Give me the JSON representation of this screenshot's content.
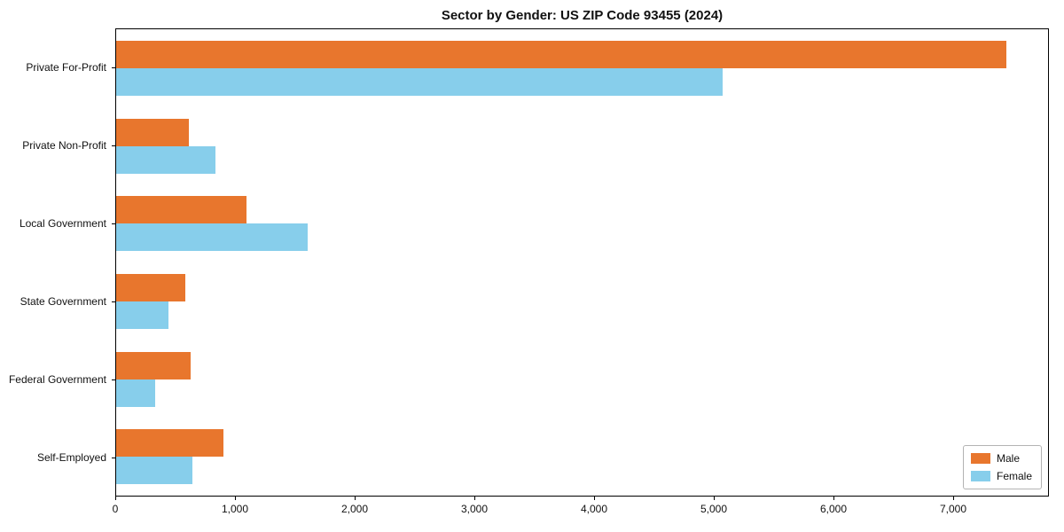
{
  "chart_data": {
    "type": "bar",
    "orientation": "horizontal",
    "title": "Sector by Gender: US ZIP Code 93455 (2024)",
    "categories": [
      "Private For-Profit",
      "Private Non-Profit",
      "Local Government",
      "State Government",
      "Federal Government",
      "Self-Employed"
    ],
    "series": [
      {
        "name": "Male",
        "color": "#e8762d",
        "values": [
          7450,
          610,
          1090,
          580,
          620,
          900
        ]
      },
      {
        "name": "Female",
        "color": "#87ceeb",
        "values": [
          5080,
          830,
          1600,
          440,
          330,
          640
        ]
      }
    ],
    "xlabel": "",
    "ylabel": "",
    "xlim": [
      0,
      7800
    ],
    "xticks": [
      0,
      1000,
      2000,
      3000,
      4000,
      5000,
      6000,
      7000
    ],
    "xtick_labels": [
      "0",
      "1,000",
      "2,000",
      "3,000",
      "4,000",
      "5,000",
      "6,000",
      "7,000"
    ],
    "grid": false,
    "legend_position": "lower right"
  }
}
